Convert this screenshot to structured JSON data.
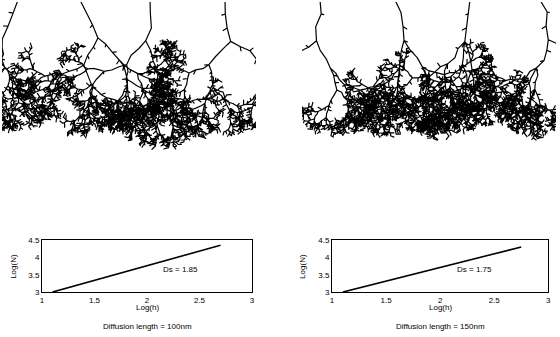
{
  "chart_data": [
    {
      "type": "line",
      "title": "Diffusion length = 100nm",
      "x_label": "Log(h)",
      "y_label": "Log(N)",
      "x": [
        1.1,
        2.7
      ],
      "values": [
        3.0,
        4.35
      ],
      "color": "#000000",
      "xlim": [
        1,
        3
      ],
      "xticks": [
        1,
        1.5,
        2,
        2.5,
        3
      ],
      "ylim": [
        3,
        4.5
      ],
      "yticks": [
        3,
        3.5,
        4,
        4.5
      ],
      "annotations": [
        "Ds = 1.85"
      ],
      "grid": false
    },
    {
      "type": "line",
      "title": "Diffusion length = 150nm",
      "x_label": "Log(h)",
      "y_label": "Log(N)",
      "x": [
        1.1,
        2.75
      ],
      "values": [
        3.0,
        4.3
      ],
      "color": "#000000",
      "xlim": [
        1,
        3
      ],
      "xticks": [
        1,
        1.5,
        2,
        2.5,
        3
      ],
      "ylim": [
        3,
        4.5
      ],
      "yticks": [
        3,
        3.5,
        4,
        4.5
      ],
      "annotations": [
        "Ds = 1.75"
      ],
      "grid": false
    }
  ]
}
